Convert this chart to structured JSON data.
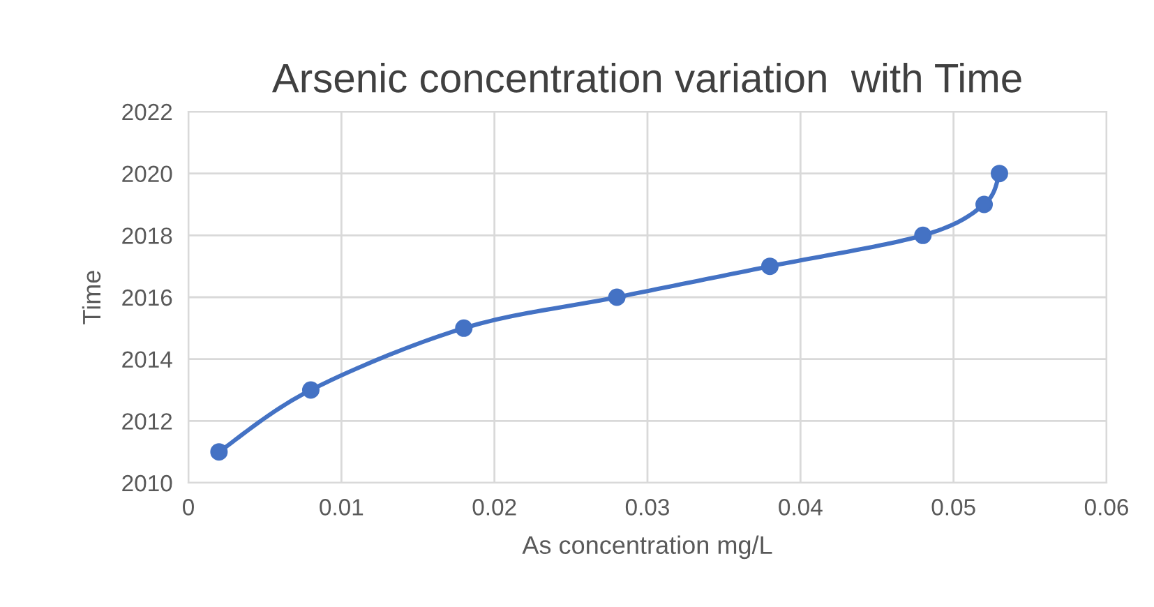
{
  "chart_data": {
    "type": "line",
    "title": "Arsenic concentration variation  with Time",
    "xlabel": "As concentration mg/L",
    "ylabel": "Time",
    "series": [
      {
        "x": [
          0.002,
          0.008,
          0.018,
          0.028,
          0.038,
          0.048,
          0.052,
          0.053
        ],
        "values": [
          2011,
          2013,
          2015,
          2016,
          2017,
          2018,
          2019,
          2020
        ],
        "color": "#4472c4"
      }
    ],
    "xlim": [
      0,
      0.06
    ],
    "xticks": [
      0,
      0.01,
      0.02,
      0.03,
      0.04,
      0.05,
      0.06
    ],
    "ylim": [
      2010,
      2022
    ],
    "yticks": [
      2010,
      2012,
      2014,
      2016,
      2018,
      2020,
      2022
    ],
    "grid": true,
    "marker": "circle",
    "line_style": "solid"
  }
}
